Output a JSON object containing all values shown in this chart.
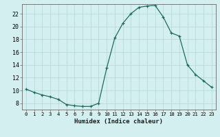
{
  "title": "",
  "xlabel": "Humidex (Indice chaleur)",
  "ylabel": "",
  "x_values": [
    0,
    1,
    2,
    3,
    4,
    5,
    6,
    7,
    8,
    9,
    10,
    11,
    12,
    13,
    14,
    15,
    16,
    17,
    18,
    19,
    20,
    21,
    22,
    23
  ],
  "y_values": [
    10.2,
    9.7,
    9.3,
    9.0,
    8.6,
    7.8,
    7.6,
    7.5,
    7.5,
    8.0,
    13.5,
    18.2,
    20.5,
    22.0,
    23.0,
    23.2,
    23.3,
    21.5,
    19.0,
    18.5,
    14.0,
    12.5,
    11.5,
    10.5
  ],
  "line_color": "#1a6b5a",
  "bg_color": "#d4efef",
  "grid_color": "#b8dada",
  "ylim": [
    7.0,
    23.5
  ],
  "xlim": [
    -0.5,
    23.5
  ],
  "yticks": [
    8,
    10,
    12,
    14,
    16,
    18,
    20,
    22
  ],
  "xticks": [
    0,
    1,
    2,
    3,
    4,
    5,
    6,
    7,
    8,
    9,
    10,
    11,
    12,
    13,
    14,
    15,
    16,
    17,
    18,
    19,
    20,
    21,
    22,
    23
  ],
  "xlabel_fontsize": 6.5,
  "ytick_fontsize": 6.0,
  "xtick_fontsize": 5.2
}
